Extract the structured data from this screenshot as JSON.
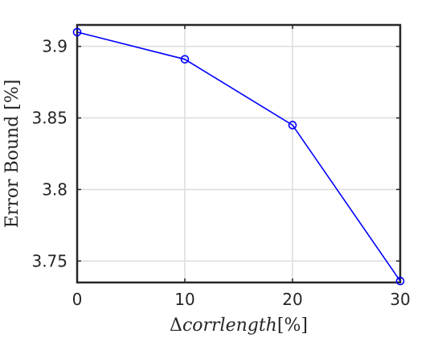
{
  "chart_data": {
    "type": "line",
    "x": [
      0,
      10,
      20,
      30
    ],
    "series": [
      {
        "values": [
          3.91,
          3.891,
          3.845,
          3.736
        ],
        "color": "#0000ff",
        "marker": "circle"
      }
    ],
    "xlim": [
      0,
      30
    ],
    "ylim": [
      3.735,
      3.915
    ],
    "xticks": [
      0,
      10,
      20,
      30
    ],
    "yticks": [
      3.75,
      3.8,
      3.85,
      3.9
    ],
    "xtick_labels": [
      "0",
      "10",
      "20",
      "30"
    ],
    "ytick_labels": [
      "3.75",
      "3.8",
      "3.85",
      "3.9"
    ],
    "xlabel_symbol": "Δ",
    "xlabel_var": "corrlength",
    "xlabel_unit": "[%]",
    "ylabel": "Error Bound [%]",
    "grid": true
  }
}
